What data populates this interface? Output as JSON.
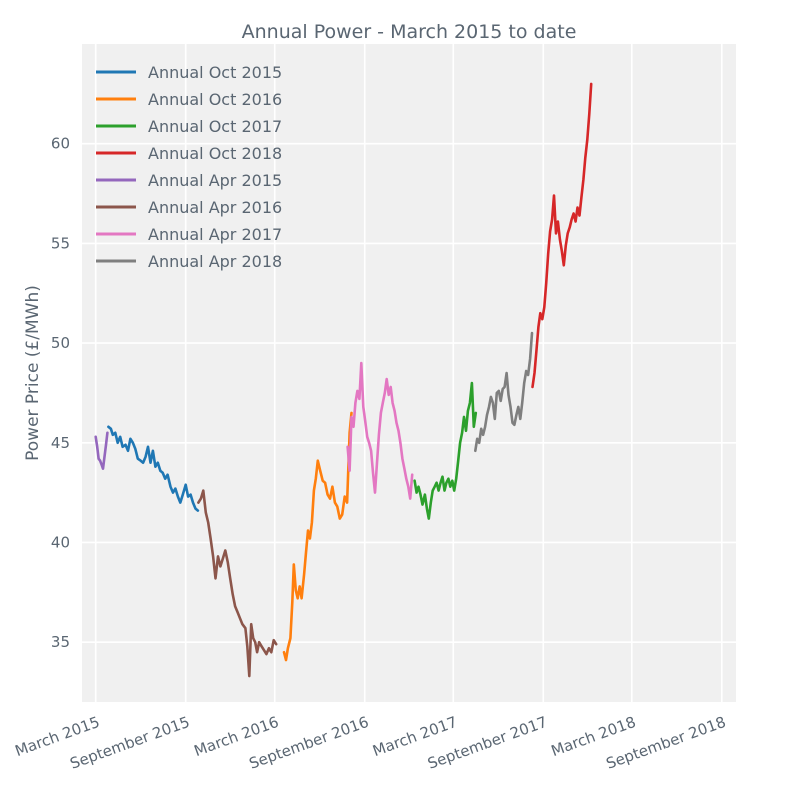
{
  "chart_data": {
    "type": "line",
    "title": "Annual Power - March 2015 to date",
    "xlabel": "",
    "ylabel": "Power Price (£/MWh)",
    "ylim": [
      32,
      65
    ],
    "xlim": [
      "2015-02-01",
      "2018-09-30"
    ],
    "y_ticks": [
      35,
      40,
      45,
      50,
      55,
      60
    ],
    "x_ticks": [
      {
        "date": "2015-03-01",
        "label": "March 2015"
      },
      {
        "date": "2015-09-01",
        "label": "September 2015"
      },
      {
        "date": "2016-03-01",
        "label": "March 2016"
      },
      {
        "date": "2016-09-01",
        "label": "September 2016"
      },
      {
        "date": "2017-03-01",
        "label": "March 2017"
      },
      {
        "date": "2017-09-01",
        "label": "September 2017"
      },
      {
        "date": "2018-03-01",
        "label": "March 2018"
      },
      {
        "date": "2018-09-01",
        "label": "September 2018"
      }
    ],
    "grid": true,
    "legend_position": "top-left",
    "legend_order": [
      "Annual Oct 2015",
      "Annual Oct 2016",
      "Annual Oct 2017",
      "Annual Oct 2018",
      "Annual Apr 2015",
      "Annual Apr 2016",
      "Annual Apr 2017",
      "Annual Apr 2018"
    ],
    "series": [
      {
        "name": "Annual Apr 2015",
        "color": "#9467bd",
        "points": [
          [
            "2015-03-01",
            45.3
          ],
          [
            "2015-03-04",
            44.8
          ],
          [
            "2015-03-07",
            44.2
          ],
          [
            "2015-03-10",
            44.1
          ],
          [
            "2015-03-13",
            43.9
          ],
          [
            "2015-03-16",
            43.7
          ],
          [
            "2015-03-19",
            44.3
          ],
          [
            "2015-03-22",
            44.9
          ],
          [
            "2015-03-25",
            45.5
          ]
        ]
      },
      {
        "name": "Annual Oct 2015",
        "color": "#1f77b4",
        "points": [
          [
            "2015-03-27",
            45.8
          ],
          [
            "2015-04-01",
            45.7
          ],
          [
            "2015-04-05",
            45.4
          ],
          [
            "2015-04-10",
            45.5
          ],
          [
            "2015-04-15",
            45.0
          ],
          [
            "2015-04-20",
            45.3
          ],
          [
            "2015-04-25",
            44.8
          ],
          [
            "2015-05-01",
            44.9
          ],
          [
            "2015-05-06",
            44.6
          ],
          [
            "2015-05-11",
            45.2
          ],
          [
            "2015-05-16",
            45.0
          ],
          [
            "2015-05-21",
            44.7
          ],
          [
            "2015-05-26",
            44.2
          ],
          [
            "2015-06-01",
            44.1
          ],
          [
            "2015-06-06",
            44.0
          ],
          [
            "2015-06-11",
            44.3
          ],
          [
            "2015-06-16",
            44.8
          ],
          [
            "2015-06-21",
            44.0
          ],
          [
            "2015-06-26",
            44.6
          ],
          [
            "2015-07-01",
            43.8
          ],
          [
            "2015-07-06",
            44.0
          ],
          [
            "2015-07-11",
            43.6
          ],
          [
            "2015-07-16",
            43.5
          ],
          [
            "2015-07-21",
            43.2
          ],
          [
            "2015-07-26",
            43.4
          ],
          [
            "2015-08-01",
            42.8
          ],
          [
            "2015-08-06",
            42.5
          ],
          [
            "2015-08-11",
            42.7
          ],
          [
            "2015-08-16",
            42.3
          ],
          [
            "2015-08-21",
            42.0
          ],
          [
            "2015-08-26",
            42.4
          ],
          [
            "2015-09-01",
            42.9
          ],
          [
            "2015-09-06",
            42.3
          ],
          [
            "2015-09-11",
            42.4
          ],
          [
            "2015-09-16",
            42.0
          ],
          [
            "2015-09-21",
            41.7
          ],
          [
            "2015-09-26",
            41.6
          ]
        ]
      },
      {
        "name": "Annual Apr 2016",
        "color": "#8c564b",
        "points": [
          [
            "2015-09-27",
            42.0
          ],
          [
            "2015-10-02",
            42.2
          ],
          [
            "2015-10-07",
            42.6
          ],
          [
            "2015-10-12",
            41.5
          ],
          [
            "2015-10-17",
            41.0
          ],
          [
            "2015-10-22",
            40.2
          ],
          [
            "2015-10-27",
            39.3
          ],
          [
            "2015-11-01",
            38.2
          ],
          [
            "2015-11-06",
            39.3
          ],
          [
            "2015-11-11",
            38.8
          ],
          [
            "2015-11-16",
            39.2
          ],
          [
            "2015-11-21",
            39.6
          ],
          [
            "2015-11-26",
            39.0
          ],
          [
            "2015-12-01",
            38.2
          ],
          [
            "2015-12-06",
            37.4
          ],
          [
            "2015-12-11",
            36.8
          ],
          [
            "2015-12-16",
            36.5
          ],
          [
            "2015-12-21",
            36.2
          ],
          [
            "2015-12-26",
            35.9
          ],
          [
            "2016-01-01",
            35.7
          ],
          [
            "2016-01-05",
            34.8
          ],
          [
            "2016-01-09",
            33.3
          ],
          [
            "2016-01-13",
            35.9
          ],
          [
            "2016-01-17",
            35.2
          ],
          [
            "2016-01-21",
            35.0
          ],
          [
            "2016-01-25",
            34.5
          ],
          [
            "2016-01-29",
            35.0
          ],
          [
            "2016-02-03",
            34.8
          ],
          [
            "2016-02-08",
            34.6
          ],
          [
            "2016-02-13",
            34.4
          ],
          [
            "2016-02-18",
            34.7
          ],
          [
            "2016-02-23",
            34.5
          ],
          [
            "2016-02-28",
            35.1
          ],
          [
            "2016-03-04",
            34.9
          ]
        ]
      },
      {
        "name": "Annual Oct 2016",
        "color": "#ff7f0e",
        "points": [
          [
            "2016-03-20",
            34.5
          ],
          [
            "2016-03-24",
            34.1
          ],
          [
            "2016-03-28",
            34.7
          ],
          [
            "2016-04-02",
            35.2
          ],
          [
            "2016-04-06",
            37.0
          ],
          [
            "2016-04-09",
            38.9
          ],
          [
            "2016-04-13",
            37.6
          ],
          [
            "2016-04-17",
            37.2
          ],
          [
            "2016-04-21",
            37.8
          ],
          [
            "2016-04-25",
            37.2
          ],
          [
            "2016-04-30",
            38.4
          ],
          [
            "2016-05-04",
            39.5
          ],
          [
            "2016-05-08",
            40.6
          ],
          [
            "2016-05-12",
            40.2
          ],
          [
            "2016-05-16",
            41.0
          ],
          [
            "2016-05-20",
            42.6
          ],
          [
            "2016-05-24",
            43.2
          ],
          [
            "2016-05-28",
            44.1
          ],
          [
            "2016-06-02",
            43.6
          ],
          [
            "2016-06-07",
            43.1
          ],
          [
            "2016-06-12",
            43.0
          ],
          [
            "2016-06-17",
            42.4
          ],
          [
            "2016-06-22",
            42.2
          ],
          [
            "2016-06-27",
            42.8
          ],
          [
            "2016-07-02",
            42.0
          ],
          [
            "2016-07-07",
            41.8
          ],
          [
            "2016-07-12",
            41.2
          ],
          [
            "2016-07-17",
            41.4
          ],
          [
            "2016-07-22",
            42.3
          ],
          [
            "2016-07-27",
            42.0
          ],
          [
            "2016-08-01",
            45.5
          ],
          [
            "2016-08-05",
            46.5
          ]
        ]
      },
      {
        "name": "Annual Apr 2017",
        "color": "#e377c2",
        "points": [
          [
            "2016-07-28",
            44.8
          ],
          [
            "2016-08-01",
            43.6
          ],
          [
            "2016-08-05",
            46.3
          ],
          [
            "2016-08-09",
            45.8
          ],
          [
            "2016-08-13",
            47.0
          ],
          [
            "2016-08-17",
            47.6
          ],
          [
            "2016-08-21",
            47.2
          ],
          [
            "2016-08-25",
            49.0
          ],
          [
            "2016-08-29",
            46.8
          ],
          [
            "2016-09-02",
            46.1
          ],
          [
            "2016-09-06",
            45.3
          ],
          [
            "2016-09-10",
            45.0
          ],
          [
            "2016-09-14",
            44.6
          ],
          [
            "2016-09-18",
            43.5
          ],
          [
            "2016-09-22",
            42.5
          ],
          [
            "2016-09-26",
            44.0
          ],
          [
            "2016-09-30",
            45.4
          ],
          [
            "2016-10-04",
            46.5
          ],
          [
            "2016-10-08",
            47.0
          ],
          [
            "2016-10-12",
            47.5
          ],
          [
            "2016-10-16",
            48.2
          ],
          [
            "2016-10-20",
            47.4
          ],
          [
            "2016-10-24",
            47.8
          ],
          [
            "2016-10-28",
            47.0
          ],
          [
            "2016-11-01",
            46.6
          ],
          [
            "2016-11-05",
            46.0
          ],
          [
            "2016-11-09",
            45.6
          ],
          [
            "2016-11-13",
            45.0
          ],
          [
            "2016-11-17",
            44.2
          ],
          [
            "2016-11-21",
            43.7
          ],
          [
            "2016-11-25",
            43.2
          ],
          [
            "2016-11-29",
            42.8
          ],
          [
            "2016-12-03",
            42.2
          ],
          [
            "2016-12-07",
            43.4
          ]
        ]
      },
      {
        "name": "Annual Oct 2017",
        "color": "#2ca02c",
        "points": [
          [
            "2016-12-12",
            43.1
          ],
          [
            "2016-12-16",
            42.5
          ],
          [
            "2016-12-20",
            42.8
          ],
          [
            "2016-12-24",
            42.4
          ],
          [
            "2016-12-28",
            41.9
          ],
          [
            "2017-01-02",
            42.4
          ],
          [
            "2017-01-06",
            41.7
          ],
          [
            "2017-01-10",
            41.2
          ],
          [
            "2017-01-14",
            42.0
          ],
          [
            "2017-01-18",
            42.6
          ],
          [
            "2017-01-22",
            42.8
          ],
          [
            "2017-01-26",
            43.0
          ],
          [
            "2017-01-30",
            42.6
          ],
          [
            "2017-02-03",
            43.0
          ],
          [
            "2017-02-07",
            43.3
          ],
          [
            "2017-02-11",
            42.6
          ],
          [
            "2017-02-15",
            43.0
          ],
          [
            "2017-02-19",
            43.2
          ],
          [
            "2017-02-23",
            42.8
          ],
          [
            "2017-02-27",
            43.1
          ],
          [
            "2017-03-03",
            42.6
          ],
          [
            "2017-03-07",
            43.2
          ],
          [
            "2017-03-11",
            44.1
          ],
          [
            "2017-03-15",
            45.0
          ],
          [
            "2017-03-19",
            45.5
          ],
          [
            "2017-03-23",
            46.3
          ],
          [
            "2017-03-27",
            45.6
          ],
          [
            "2017-03-31",
            46.6
          ],
          [
            "2017-04-04",
            47.0
          ],
          [
            "2017-04-08",
            48.0
          ],
          [
            "2017-04-12",
            45.8
          ],
          [
            "2017-04-16",
            46.5
          ]
        ]
      },
      {
        "name": "Annual Apr 2018",
        "color": "#7f7f7f",
        "points": [
          [
            "2017-04-15",
            44.6
          ],
          [
            "2017-04-19",
            45.2
          ],
          [
            "2017-04-23",
            45.0
          ],
          [
            "2017-04-27",
            45.7
          ],
          [
            "2017-05-01",
            45.4
          ],
          [
            "2017-05-05",
            45.8
          ],
          [
            "2017-05-09",
            46.4
          ],
          [
            "2017-05-13",
            46.8
          ],
          [
            "2017-05-17",
            47.3
          ],
          [
            "2017-05-21",
            47.0
          ],
          [
            "2017-05-25",
            46.2
          ],
          [
            "2017-05-29",
            47.5
          ],
          [
            "2017-06-02",
            47.6
          ],
          [
            "2017-06-06",
            47.1
          ],
          [
            "2017-06-10",
            47.7
          ],
          [
            "2017-06-14",
            47.8
          ],
          [
            "2017-06-18",
            48.5
          ],
          [
            "2017-06-22",
            47.4
          ],
          [
            "2017-06-26",
            46.8
          ],
          [
            "2017-06-30",
            46.0
          ],
          [
            "2017-07-04",
            45.9
          ],
          [
            "2017-07-08",
            46.4
          ],
          [
            "2017-07-12",
            46.8
          ],
          [
            "2017-07-16",
            46.2
          ],
          [
            "2017-07-20",
            47.0
          ],
          [
            "2017-07-24",
            48.0
          ],
          [
            "2017-07-28",
            48.6
          ],
          [
            "2017-08-01",
            48.4
          ],
          [
            "2017-08-05",
            49.2
          ],
          [
            "2017-08-09",
            50.5
          ]
        ]
      },
      {
        "name": "Annual Oct 2018",
        "color": "#d62728",
        "points": [
          [
            "2017-08-10",
            47.8
          ],
          [
            "2017-08-14",
            48.5
          ],
          [
            "2017-08-18",
            49.6
          ],
          [
            "2017-08-22",
            50.8
          ],
          [
            "2017-08-26",
            51.5
          ],
          [
            "2017-08-30",
            51.2
          ],
          [
            "2017-09-03",
            51.8
          ],
          [
            "2017-09-07",
            53.0
          ],
          [
            "2017-09-11",
            54.5
          ],
          [
            "2017-09-15",
            55.6
          ],
          [
            "2017-09-19",
            56.2
          ],
          [
            "2017-09-23",
            57.4
          ],
          [
            "2017-09-27",
            55.5
          ],
          [
            "2017-10-01",
            56.1
          ],
          [
            "2017-10-05",
            55.2
          ],
          [
            "2017-10-09",
            54.6
          ],
          [
            "2017-10-13",
            53.9
          ],
          [
            "2017-10-17",
            54.9
          ],
          [
            "2017-10-21",
            55.5
          ],
          [
            "2017-10-25",
            55.8
          ],
          [
            "2017-10-29",
            56.2
          ],
          [
            "2017-11-02",
            56.5
          ],
          [
            "2017-11-06",
            56.1
          ],
          [
            "2017-11-10",
            56.8
          ],
          [
            "2017-11-14",
            56.4
          ],
          [
            "2017-11-18",
            57.3
          ],
          [
            "2017-11-22",
            58.2
          ],
          [
            "2017-11-26",
            59.3
          ],
          [
            "2017-11-30",
            60.2
          ],
          [
            "2017-12-04",
            61.5
          ],
          [
            "2017-12-08",
            63.0
          ]
        ]
      }
    ]
  }
}
